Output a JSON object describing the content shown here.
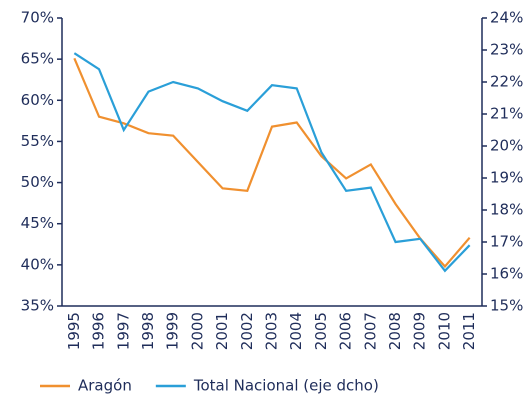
{
  "chart_data": {
    "type": "line",
    "categories": [
      "1995",
      "1996",
      "1997",
      "1998",
      "1999",
      "2000",
      "2001",
      "2002",
      "2003",
      "2004",
      "2005",
      "2006",
      "2007",
      "2008",
      "2009",
      "2010",
      "2011"
    ],
    "series": [
      {
        "name": "Aragón",
        "color": "#f0902f",
        "values": [
          65.1,
          58.0,
          57.2,
          56.0,
          55.7,
          52.5,
          49.3,
          49.0,
          56.8,
          57.3,
          53.2,
          50.5,
          52.2,
          47.4,
          43.2,
          39.8,
          43.3
        ]
      },
      {
        "name": "Total Nacional (eje dcho)",
        "color": "#2a9fd8",
        "axis": "y2",
        "values": [
          22.9,
          22.4,
          20.5,
          21.7,
          22.0,
          21.8,
          21.4,
          21.1,
          21.9,
          21.8,
          19.8,
          18.6,
          18.7,
          17.0,
          17.1,
          16.1,
          16.9
        ]
      }
    ],
    "ylim": [
      35,
      70
    ],
    "yticks": [
      {
        "value": 35,
        "label": "35%"
      },
      {
        "value": 40,
        "label": "40%"
      },
      {
        "value": 45,
        "label": "45%"
      },
      {
        "value": 50,
        "label": "50%"
      },
      {
        "value": 55,
        "label": "55%"
      },
      {
        "value": 60,
        "label": "60%"
      },
      {
        "value": 65,
        "label": "65%"
      },
      {
        "value": 70,
        "label": "70%"
      }
    ],
    "y2lim": [
      15,
      24
    ],
    "y2ticks": [
      {
        "value": 15,
        "label": "15%"
      },
      {
        "value": 16,
        "label": "16%"
      },
      {
        "value": 17,
        "label": "17%"
      },
      {
        "value": 18,
        "label": "18%"
      },
      {
        "value": 19,
        "label": "19%"
      },
      {
        "value": 20,
        "label": "20%"
      },
      {
        "value": 21,
        "label": "21%"
      },
      {
        "value": 22,
        "label": "22%"
      },
      {
        "value": 23,
        "label": "23%"
      },
      {
        "value": 24,
        "label": "24%"
      }
    ],
    "legend": "bottom"
  }
}
